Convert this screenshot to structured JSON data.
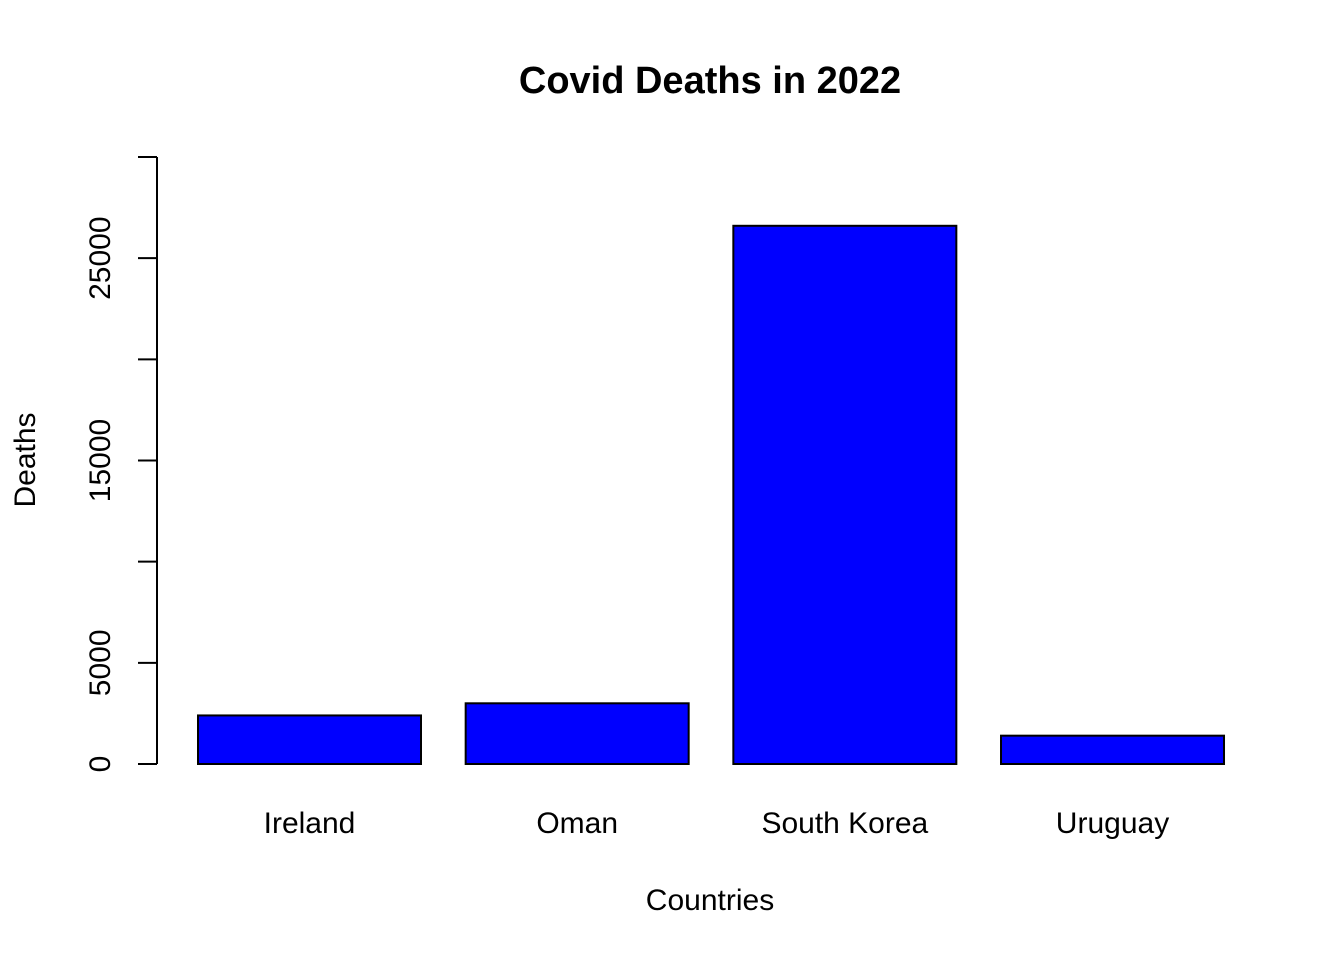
{
  "chart_data": {
    "type": "bar",
    "title": "Covid Deaths in 2022",
    "xlabel": "Countries",
    "ylabel": "Deaths",
    "categories": [
      "Ireland",
      "Oman",
      "South Korea",
      "Uruguay"
    ],
    "values": [
      2400,
      3000,
      26600,
      1400
    ],
    "ylim": [
      0,
      30000
    ],
    "yticks": [
      0,
      5000,
      10000,
      15000,
      20000,
      25000,
      30000
    ],
    "ytick_labels": [
      "0",
      "5000",
      "",
      "15000",
      "",
      "25000",
      ""
    ],
    "bar_color": "#0000FF",
    "grid": false,
    "legend": "none"
  }
}
